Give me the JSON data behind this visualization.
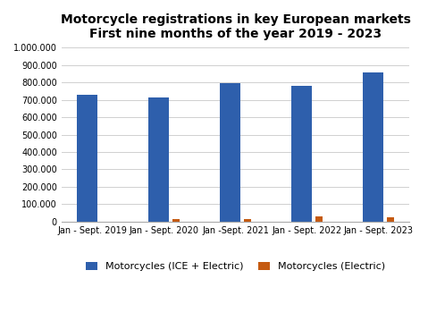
{
  "title_line1": "Motorcycle registrations in key European markets",
  "title_line2": "First nine months of the year 2019 - 2023",
  "categories": [
    "Jan - Sept. 2019",
    "Jan - Sept. 2020",
    "Jan -Sept. 2021",
    "Jan - Sept. 2022",
    "Jan - Sept. 2023"
  ],
  "ice_electric": [
    730000,
    715000,
    795000,
    780000,
    860000
  ],
  "electric": [
    0,
    12000,
    15000,
    32000,
    27000
  ],
  "ice_color": "#2E5FAC",
  "electric_color": "#C55A11",
  "ylim": [
    0,
    1000000
  ],
  "yticks": [
    0,
    100000,
    200000,
    300000,
    400000,
    500000,
    600000,
    700000,
    800000,
    900000,
    1000000
  ],
  "legend_labels": [
    "Motorcycles (ICE + Electric)",
    "Motorcycles (Electric)"
  ],
  "bg_color": "#FFFFFF",
  "outer_bg": "#FFFFFF",
  "blue_bar_width": 0.28,
  "orange_bar_width": 0.1,
  "bar_gap": 0.05,
  "title_fontsize": 10,
  "tick_fontsize": 7,
  "legend_fontsize": 8
}
